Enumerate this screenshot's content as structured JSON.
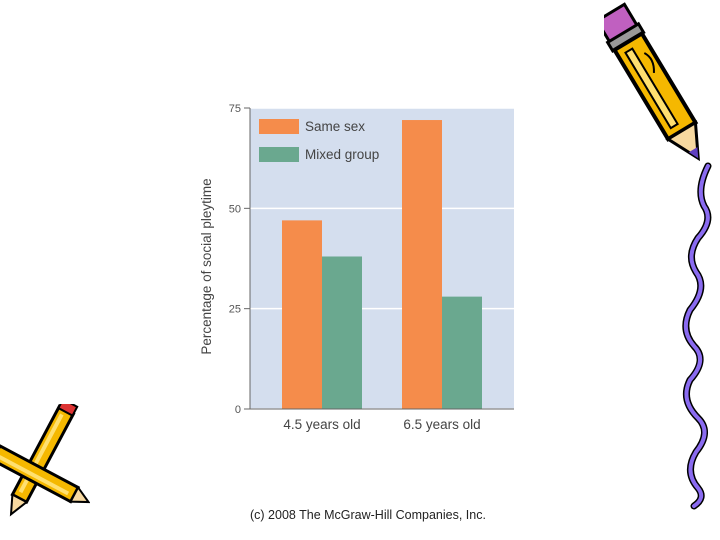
{
  "chart_data": {
    "type": "bar",
    "categories": [
      "4.5 years old",
      "6.5 years old"
    ],
    "series": [
      {
        "name": "Same sex",
        "values": [
          47,
          72
        ],
        "color": "#f58c4b"
      },
      {
        "name": "Mixed group",
        "values": [
          38,
          28
        ],
        "color": "#6aa88f"
      }
    ],
    "ylabel": "Percentage of social pleytime",
    "ylim": [
      0,
      75
    ],
    "yticks": [
      "0",
      "25",
      "50",
      "75"
    ],
    "grid": true,
    "legend_position": "top-left",
    "plot_background": "#d4deee"
  },
  "footer": {
    "copyright": "(c) 2008 The McGraw-Hill Companies, Inc."
  },
  "decorations": {
    "icons": [
      "pencil-clipart-icon",
      "crossed-pencils-clipart-icon",
      "squiggle-line-icon"
    ]
  }
}
